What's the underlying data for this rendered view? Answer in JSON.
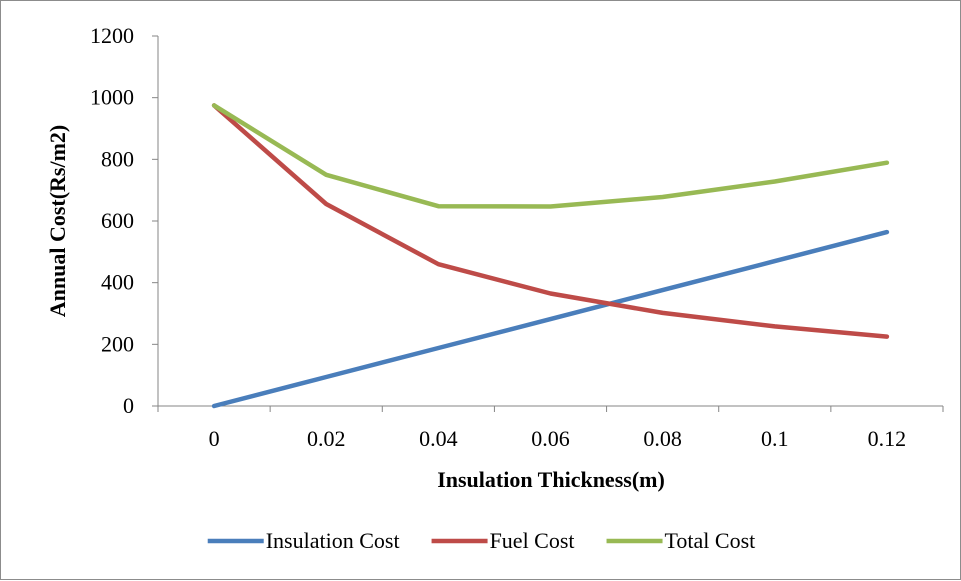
{
  "chart_data": {
    "type": "line",
    "x": [
      0,
      0.02,
      0.04,
      0.06,
      0.08,
      0.1,
      0.12
    ],
    "x_tick_labels": [
      "0",
      "0.02",
      "0.04",
      "0.06",
      "0.08",
      "0.1",
      "0.12"
    ],
    "xlabel": "Insulation Thickness(m)",
    "ylabel": "Annual Cost(Rs/m2)",
    "ylim": [
      0,
      1200
    ],
    "y_ticks": [
      0,
      200,
      400,
      600,
      800,
      1000,
      1200
    ],
    "grid": false,
    "legend_position": "bottom",
    "series": [
      {
        "name": "Insulation Cost",
        "color": "#4a7ebb",
        "values": [
          0,
          94,
          188,
          282,
          376,
          470,
          564
        ]
      },
      {
        "name": "Fuel Cost",
        "color": "#be4b48",
        "values": [
          975,
          655,
          460,
          365,
          302,
          258,
          225
        ]
      },
      {
        "name": "Total Cost",
        "color": "#98b954",
        "values": [
          975,
          750,
          648,
          647,
          678,
          728,
          789
        ]
      }
    ]
  }
}
